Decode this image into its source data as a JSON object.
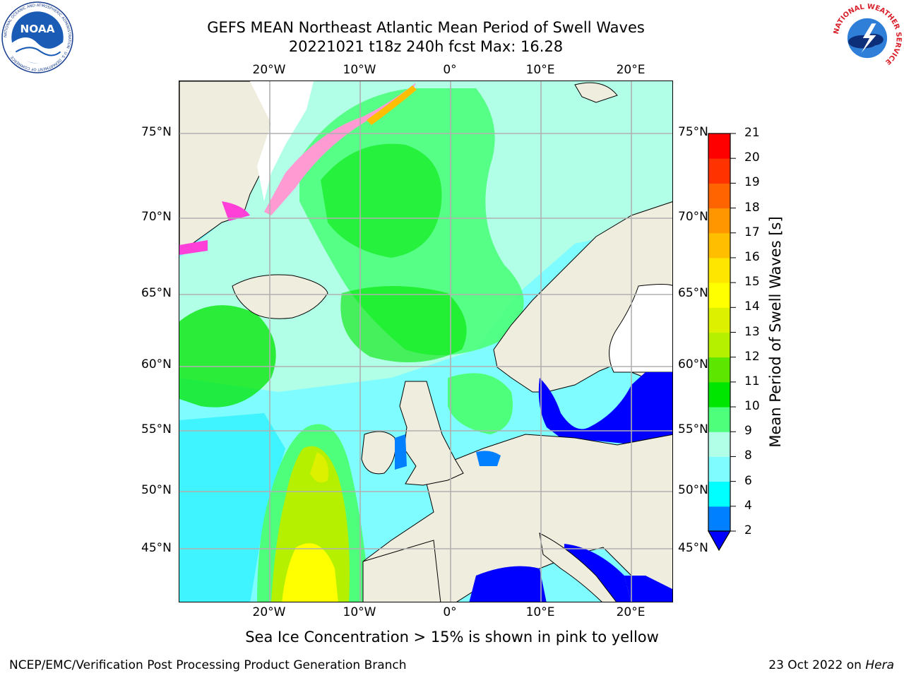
{
  "header": {
    "title_line1": "GEFS MEAN Northeast Atlantic Mean Period of Swell Waves",
    "title_line2": "20221021 t18z 240h fcst   Max: 16.28"
  },
  "logos": {
    "left": "NOAA",
    "left_ring_text": "NATIONAL OCEANIC AND ATMOSPHERIC ADMINISTRATION · U.S. DEPARTMENT OF COMMERCE",
    "right_ring_text": "NATIONAL WEATHER SERVICE"
  },
  "map": {
    "lon_ticks_top": [
      "20°W",
      "10°W",
      "0°",
      "10°E",
      "20°E"
    ],
    "lon_ticks_bottom": [
      "20°W",
      "10°W",
      "0°",
      "10°E",
      "20°E"
    ],
    "lat_ticks_left": [
      "75°N",
      "70°N",
      "65°N",
      "60°N",
      "55°N",
      "50°N",
      "45°N"
    ],
    "lat_ticks_right": [
      "75°N",
      "70°N",
      "65°N",
      "60°N",
      "55°N",
      "50°N",
      "45°N"
    ],
    "land_color": "#efedde",
    "grid_color": "#b0b0b0"
  },
  "colorbar": {
    "title": "Mean Period of Swell Waves [s]",
    "levels": [
      "2",
      "4",
      "6",
      "8",
      "9",
      "10",
      "11",
      "12",
      "13",
      "14",
      "15",
      "16",
      "17",
      "18",
      "19",
      "20",
      "21"
    ],
    "colors": [
      "#0000ff",
      "#0080ff",
      "#00ffff",
      "#7ffcff",
      "#b0ffe6",
      "#4dff7a",
      "#00e600",
      "#5ce600",
      "#b4f000",
      "#dcf000",
      "#ffff00",
      "#ffe600",
      "#ffbe00",
      "#ff9600",
      "#ff6400",
      "#ff3200",
      "#ff0000"
    ]
  },
  "subnote": "Sea Ice Concentration > 15% is shown in pink to yellow",
  "footer": {
    "left": "NCEP/EMC/Verification Post Processing Product Generation Branch",
    "right_prefix": "23 Oct 2022 on ",
    "right_italic": "Hera"
  }
}
